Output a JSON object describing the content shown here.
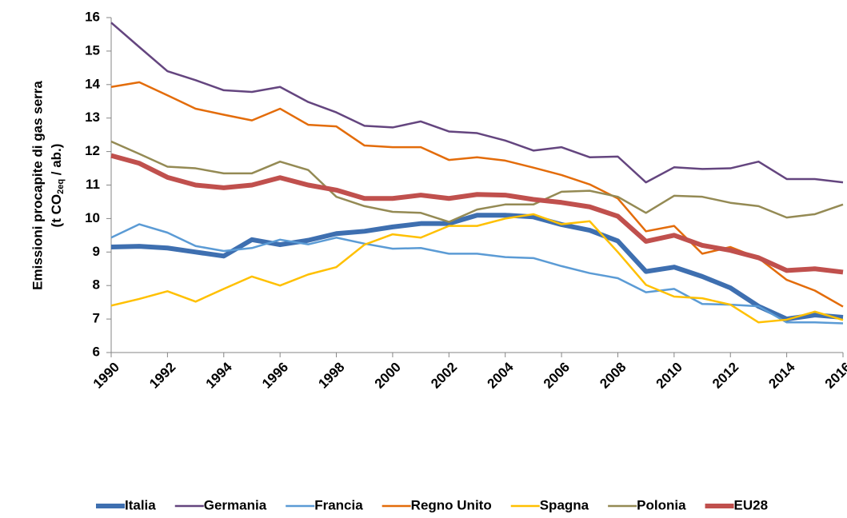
{
  "chart_data": {
    "type": "line",
    "ylabel": [
      "Emissioni procapite di gas serra",
      "(t CO",
      "2eq",
      " / ab.)"
    ],
    "x": [
      1990,
      1991,
      1992,
      1993,
      1994,
      1995,
      1996,
      1997,
      1998,
      1999,
      2000,
      2001,
      2002,
      2003,
      2004,
      2005,
      2006,
      2007,
      2008,
      2009,
      2010,
      2011,
      2012,
      2013,
      2014,
      2015,
      2016
    ],
    "xlim": [
      1990,
      2016
    ],
    "xticks": [
      1990,
      1992,
      1994,
      1996,
      1998,
      2000,
      2002,
      2004,
      2006,
      2008,
      2010,
      2012,
      2014,
      2016
    ],
    "ylim": [
      6,
      16
    ],
    "yticks": [
      6,
      7,
      8,
      9,
      10,
      11,
      12,
      13,
      14,
      15,
      16
    ],
    "grid": false,
    "legend": "bottom",
    "series": [
      {
        "name": "Italia",
        "color": "#3e6fb0",
        "line_width": 6,
        "values": [
          9.15,
          9.17,
          9.12,
          9.0,
          8.88,
          9.37,
          9.22,
          9.35,
          9.55,
          9.62,
          9.75,
          9.85,
          9.85,
          10.1,
          10.1,
          10.05,
          9.82,
          9.65,
          9.33,
          8.42,
          8.55,
          8.27,
          7.93,
          7.38,
          7.0,
          7.12,
          7.05
        ]
      },
      {
        "name": "Germania",
        "color": "#64457f",
        "line_width": 2.5,
        "values": [
          15.85,
          15.12,
          14.4,
          14.13,
          13.83,
          13.78,
          13.93,
          13.48,
          13.17,
          12.77,
          12.72,
          12.9,
          12.6,
          12.55,
          12.33,
          12.03,
          12.13,
          11.83,
          11.85,
          11.08,
          11.53,
          11.48,
          11.5,
          11.7,
          11.18,
          11.18,
          11.08
        ]
      },
      {
        "name": "Francia",
        "color": "#5b9bd5",
        "line_width": 2.5,
        "values": [
          9.43,
          9.83,
          9.58,
          9.18,
          9.03,
          9.12,
          9.37,
          9.23,
          9.43,
          9.25,
          9.1,
          9.12,
          8.95,
          8.95,
          8.85,
          8.82,
          8.58,
          8.37,
          8.22,
          7.8,
          7.9,
          7.45,
          7.43,
          7.38,
          6.9,
          6.9,
          6.87
        ]
      },
      {
        "name": "Regno Unito",
        "color": "#e36c0a",
        "line_width": 2.5,
        "values": [
          13.93,
          14.07,
          13.68,
          13.28,
          13.1,
          12.93,
          13.28,
          12.8,
          12.75,
          12.18,
          12.13,
          12.13,
          11.75,
          11.83,
          11.73,
          11.52,
          11.3,
          11.02,
          10.6,
          9.62,
          9.78,
          8.95,
          9.15,
          8.82,
          8.17,
          7.85,
          7.37
        ]
      },
      {
        "name": "Spagna",
        "color": "#ffc000",
        "line_width": 2.5,
        "values": [
          7.4,
          7.6,
          7.83,
          7.52,
          7.9,
          8.27,
          8.0,
          8.33,
          8.55,
          9.22,
          9.53,
          9.43,
          9.78,
          9.78,
          10.0,
          10.13,
          9.83,
          9.92,
          9.0,
          8.02,
          7.67,
          7.62,
          7.43,
          6.9,
          6.98,
          7.22,
          6.97
        ]
      },
      {
        "name": "Polonia",
        "color": "#948a54",
        "line_width": 2.5,
        "values": [
          12.3,
          11.93,
          11.55,
          11.5,
          11.35,
          11.35,
          11.7,
          11.45,
          10.65,
          10.37,
          10.2,
          10.17,
          9.9,
          10.27,
          10.42,
          10.42,
          10.8,
          10.83,
          10.65,
          10.17,
          10.68,
          10.65,
          10.47,
          10.37,
          10.03,
          10.13,
          10.42
        ]
      },
      {
        "name": "EU28",
        "color": "#c0504d",
        "line_width": 6,
        "values": [
          11.88,
          11.65,
          11.23,
          11.0,
          10.92,
          11.0,
          11.22,
          11.0,
          10.85,
          10.6,
          10.6,
          10.7,
          10.6,
          10.72,
          10.7,
          10.57,
          10.48,
          10.35,
          10.07,
          9.32,
          9.5,
          9.2,
          9.05,
          8.83,
          8.45,
          8.5,
          8.4
        ]
      }
    ]
  }
}
